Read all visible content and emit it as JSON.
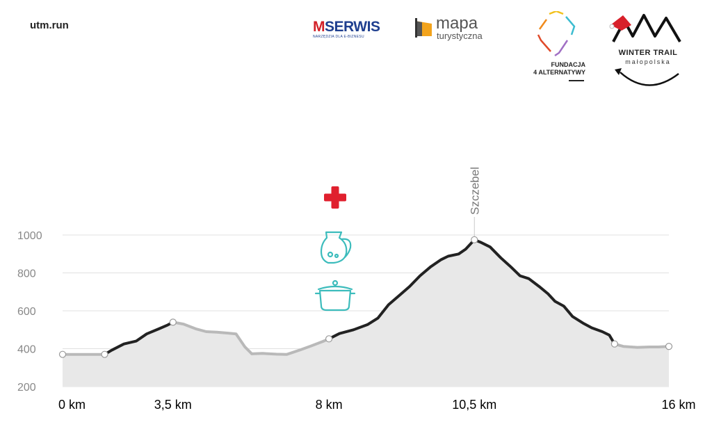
{
  "header": {
    "site": "utm.run",
    "logos": {
      "mserwis": {
        "brand_m": "M",
        "brand_rest": "SERWIS",
        "tagline": "NARZĘDZIA DLA E-BIZNESU"
      },
      "mapa": {
        "word": "mapa",
        "sub": "turystyczna"
      },
      "fundacja": {
        "line1": "FUNDACJA",
        "line2": "4 ALTERNATYWY"
      },
      "winter_trail": {
        "title": "WINTER TRAIL",
        "sub": "małopolska"
      }
    }
  },
  "colors": {
    "profile_dark": "#222222",
    "profile_light": "#b9b9b9",
    "fill": "#e8e8e8",
    "grid": "#e0e0e0",
    "medical": "#e0202e",
    "aid_icons": "#3cbcbc"
  },
  "chart_data": {
    "type": "area",
    "title": "",
    "xlabel": "",
    "ylabel": "",
    "ylim": [
      200,
      1000
    ],
    "y_ticks": [
      200,
      400,
      600,
      800,
      1000
    ],
    "x_tick_labels": [
      {
        "x": 0,
        "label": "0 km"
      },
      {
        "x": 3.5,
        "label": "3,5 km"
      },
      {
        "x": 8,
        "label": "8 km"
      },
      {
        "x": 10.5,
        "label": "10,5 km"
      },
      {
        "x": 16,
        "label": "16 km"
      }
    ],
    "grid": true,
    "series": [
      {
        "points": [
          [
            0,
            370
          ],
          [
            1.2,
            370
          ],
          [
            1.4,
            392
          ],
          [
            1.75,
            425
          ],
          [
            2.1,
            440
          ],
          [
            2.4,
            478
          ],
          [
            2.75,
            505
          ],
          [
            3.0,
            525
          ],
          [
            3.15,
            540
          ],
          [
            3.45,
            530
          ],
          [
            3.8,
            505
          ],
          [
            4.1,
            490
          ],
          [
            4.4,
            487
          ],
          [
            4.75,
            482
          ],
          [
            4.95,
            478
          ],
          [
            5.2,
            410
          ],
          [
            5.4,
            373
          ],
          [
            5.7,
            375
          ],
          [
            6.1,
            371
          ],
          [
            6.4,
            370
          ],
          [
            6.8,
            395
          ],
          [
            7.1,
            415
          ],
          [
            7.45,
            440
          ],
          [
            7.6,
            452
          ],
          [
            7.9,
            480
          ],
          [
            8.3,
            500
          ],
          [
            8.7,
            527
          ],
          [
            9.0,
            562
          ],
          [
            9.3,
            632
          ],
          [
            9.6,
            680
          ],
          [
            9.9,
            728
          ],
          [
            10.2,
            785
          ],
          [
            10.5,
            832
          ],
          [
            10.8,
            870
          ],
          [
            11.0,
            888
          ],
          [
            11.3,
            900
          ],
          [
            11.5,
            925
          ],
          [
            11.75,
            975
          ],
          [
            11.95,
            960
          ],
          [
            12.2,
            937
          ],
          [
            12.5,
            880
          ],
          [
            12.8,
            830
          ],
          [
            13.05,
            785
          ],
          [
            13.3,
            770
          ],
          [
            13.6,
            728
          ],
          [
            13.85,
            690
          ],
          [
            14.05,
            650
          ],
          [
            14.3,
            625
          ],
          [
            14.55,
            570
          ],
          [
            14.85,
            535
          ],
          [
            15.1,
            510
          ],
          [
            15.4,
            490
          ],
          [
            15.6,
            472
          ],
          [
            15.75,
            425
          ],
          [
            16.0,
            412
          ],
          [
            16.4,
            407
          ],
          [
            16.75,
            409
          ],
          [
            17.0,
            409
          ],
          [
            17.3,
            412
          ]
        ],
        "segments": [
          {
            "from": 0,
            "to": 1.2,
            "style": "light"
          },
          {
            "from": 1.2,
            "to": 3.15,
            "style": "dark"
          },
          {
            "from": 3.15,
            "to": 7.45,
            "style": "light"
          },
          {
            "from": 7.45,
            "to": 7.6,
            "style": "light"
          },
          {
            "from": 7.6,
            "to": 15.75,
            "style": "dark"
          },
          {
            "from": 15.75,
            "to": 17.3,
            "style": "light"
          }
        ],
        "markers": [
          [
            0,
            370
          ],
          [
            1.2,
            370
          ],
          [
            3.15,
            540
          ],
          [
            7.6,
            452
          ],
          [
            11.75,
            975
          ],
          [
            15.75,
            425
          ],
          [
            17.3,
            412
          ]
        ]
      }
    ],
    "verticals": [
      3.15,
      7.6,
      11.75
    ],
    "peak": {
      "x": 11.75,
      "label": "Szczebel"
    },
    "aid_station": {
      "x": 7.6,
      "icons": [
        "medical-cross-icon",
        "drink-jug-icon",
        "food-pot-icon"
      ]
    }
  }
}
